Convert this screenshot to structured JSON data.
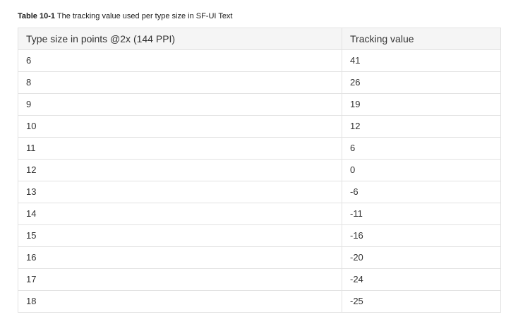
{
  "caption": {
    "number": "Table 10-1",
    "text": "The tracking value used per type size in SF-UI Text"
  },
  "table": {
    "headers": [
      "Type size in points @2x (144 PPI)",
      "Tracking value"
    ],
    "rows": [
      [
        "6",
        "41"
      ],
      [
        "8",
        "26"
      ],
      [
        "9",
        "19"
      ],
      [
        "10",
        "12"
      ],
      [
        "11",
        "6"
      ],
      [
        "12",
        "0"
      ],
      [
        "13",
        "-6"
      ],
      [
        "14",
        "-11"
      ],
      [
        "15",
        "-16"
      ],
      [
        "16",
        "-20"
      ],
      [
        "17",
        "-24"
      ],
      [
        "18",
        "-25"
      ]
    ]
  }
}
